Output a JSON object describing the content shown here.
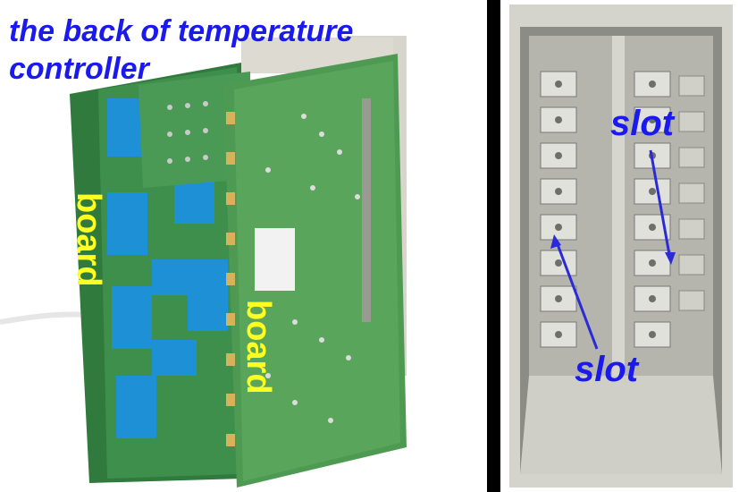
{
  "left_photo": {
    "caption": "the back of temperature controller",
    "caption_line1": "the back of temperature",
    "caption_line2": "controller",
    "board_label_1": "board",
    "board_label_2": "board"
  },
  "right_photo": {
    "slot_label_top": "slot",
    "slot_label_bottom": "slot"
  },
  "colors": {
    "annotation_blue": "#1a1aee",
    "annotation_yellow": "#ffff22",
    "pcb_green": "#3f8f4c",
    "terminal_blue": "#1e90d6",
    "housing_gray": "#c9c9c2"
  }
}
